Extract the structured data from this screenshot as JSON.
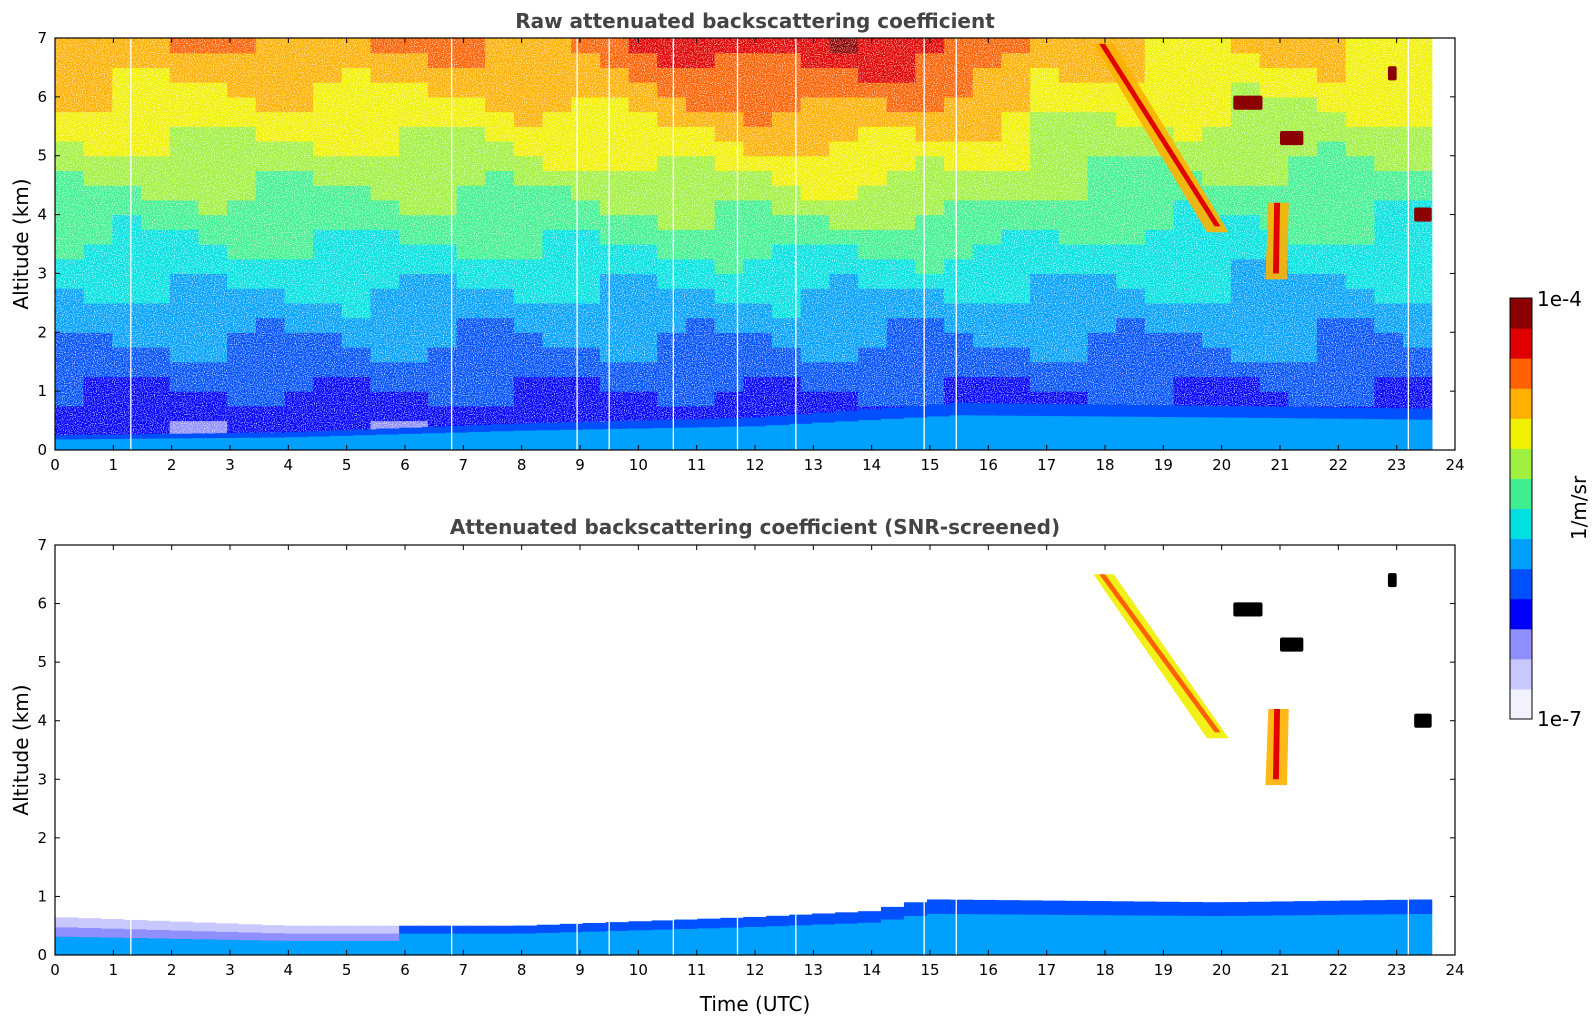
{
  "chart_data": [
    {
      "type": "heatmap",
      "title": "Raw attenuated backscattering coefficient",
      "xlabel": "",
      "ylabel": "Altitude (km)",
      "xlim": [
        0,
        24
      ],
      "ylim": [
        0,
        7
      ],
      "x_ticks": [
        "0",
        "1",
        "2",
        "3",
        "4",
        "5",
        "6",
        "7",
        "8",
        "9",
        "10",
        "11",
        "12",
        "13",
        "14",
        "15",
        "16",
        "17",
        "18",
        "19",
        "20",
        "21",
        "22",
        "23",
        "24"
      ],
      "y_ticks": [
        "0",
        "1",
        "2",
        "3",
        "4",
        "5",
        "6",
        "7"
      ],
      "data_end_time": 23.6,
      "gap_times": [
        1.3,
        6.8,
        8.95,
        9.5,
        10.6,
        11.7,
        12.7,
        14.9,
        15.45,
        23.2
      ],
      "boundary_layer_top_km": [
        [
          0,
          0.25
        ],
        [
          4,
          0.3
        ],
        [
          8,
          0.45
        ],
        [
          12,
          0.55
        ],
        [
          15.5,
          0.8
        ],
        [
          20,
          0.75
        ],
        [
          23.6,
          0.7
        ]
      ],
      "features": [
        {
          "label": "cirrus band A",
          "t_start": 17.8,
          "z_top": 6.9,
          "t_end": 20.0,
          "z_bottom": 3.7,
          "level": 0.85
        },
        {
          "label": "cirrus band B",
          "t_start": 20.8,
          "z_top": 4.2,
          "t_end": 21.0,
          "z_bottom": 2.9,
          "level": 0.85
        },
        {
          "label": "dense layer",
          "t_start": 20.2,
          "t_end": 20.7,
          "z": 5.9,
          "level": 1.0
        },
        {
          "label": "dense layer",
          "t_start": 21.0,
          "t_end": 21.4,
          "z": 5.3,
          "level": 1.0
        },
        {
          "label": "dense layer",
          "t_start": 22.85,
          "t_end": 23.0,
          "z": 6.4,
          "level": 1.0
        },
        {
          "label": "dense layer",
          "t_start": 23.3,
          "t_end": 23.6,
          "z": 4.0,
          "level": 1.0
        }
      ]
    },
    {
      "type": "heatmap",
      "title": "Attenuated backscattering coefficient (SNR-screened)",
      "xlabel": "Time (UTC)",
      "ylabel": "Altitude (km)",
      "xlim": [
        0,
        24
      ],
      "ylim": [
        0,
        7
      ],
      "x_ticks": [
        "0",
        "1",
        "2",
        "3",
        "4",
        "5",
        "6",
        "7",
        "8",
        "9",
        "10",
        "11",
        "12",
        "13",
        "14",
        "15",
        "16",
        "17",
        "18",
        "19",
        "20",
        "21",
        "22",
        "23",
        "24"
      ],
      "y_ticks": [
        "0",
        "1",
        "2",
        "3",
        "4",
        "5",
        "6",
        "7"
      ],
      "data_end_time": 23.6,
      "gap_times": [
        1.3,
        6.8,
        8.95,
        9.5,
        10.6,
        11.7,
        12.7,
        14.9,
        15.45,
        23.2
      ],
      "boundary_layer_top_km": [
        [
          0,
          0.65
        ],
        [
          4,
          0.5
        ],
        [
          8,
          0.5
        ],
        [
          12,
          0.65
        ],
        [
          14,
          0.75
        ],
        [
          15,
          0.95
        ],
        [
          20,
          0.9
        ],
        [
          23.6,
          0.95
        ]
      ],
      "features": [
        {
          "label": "cirrus band A",
          "t_start": 17.8,
          "z_top": 6.5,
          "t_end": 20.0,
          "z_bottom": 3.7,
          "level": 0.8
        },
        {
          "label": "cirrus band B",
          "t_start": 20.8,
          "z_top": 4.2,
          "t_end": 21.0,
          "z_bottom": 2.9,
          "level": 0.85
        },
        {
          "label": "saturated layer",
          "t_start": 20.2,
          "t_end": 20.7,
          "z": 5.9,
          "level": "black"
        },
        {
          "label": "saturated layer",
          "t_start": 21.0,
          "t_end": 21.4,
          "z": 5.3,
          "level": "black"
        },
        {
          "label": "saturated layer",
          "t_start": 22.85,
          "t_end": 23.0,
          "z": 6.4,
          "level": "black"
        },
        {
          "label": "saturated layer",
          "t_start": 23.3,
          "t_end": 23.6,
          "z": 4.0,
          "level": "black"
        }
      ]
    }
  ],
  "colorbar": {
    "label": "1/m/sr",
    "max_label": "1e-4",
    "min_label": "1e-7",
    "colors": [
      "#f2f2ff",
      "#c8c8ff",
      "#8f8fff",
      "#0000ff",
      "#0050ff",
      "#00a0ff",
      "#00e0e0",
      "#40f090",
      "#a0f040",
      "#f0f000",
      "#ffb000",
      "#ff6000",
      "#e00000",
      "#8b0000"
    ]
  }
}
